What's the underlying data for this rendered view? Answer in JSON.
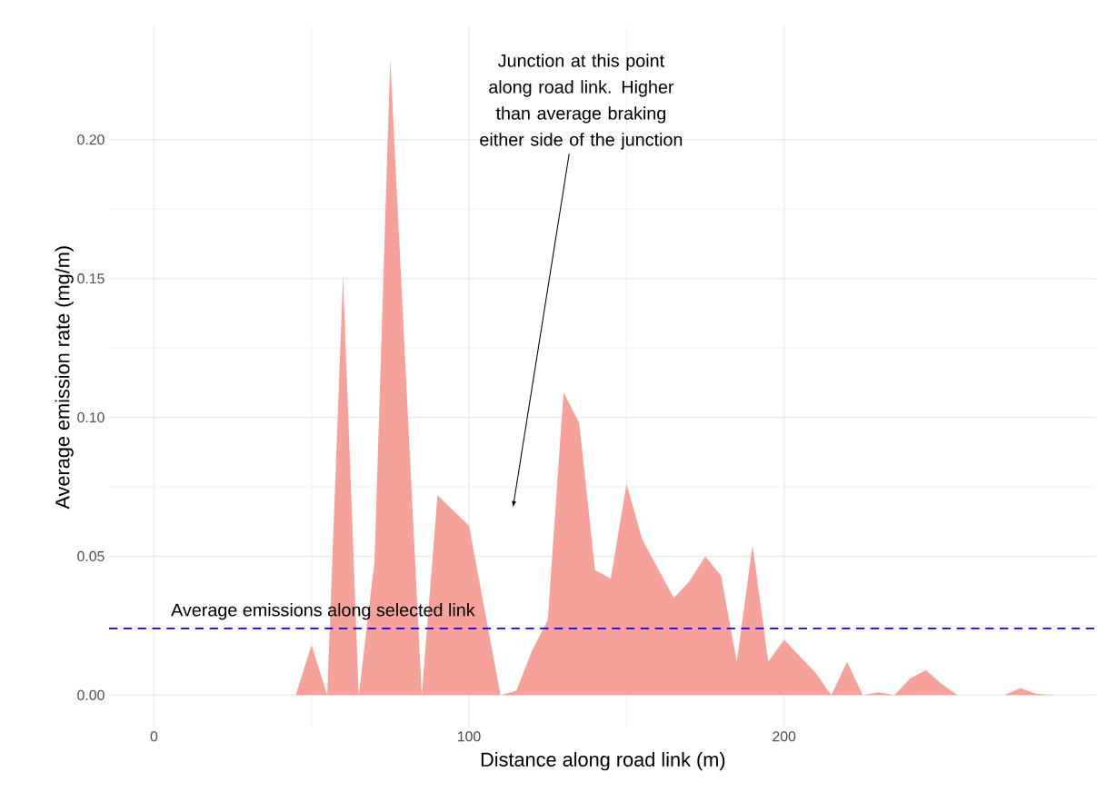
{
  "chart_data": {
    "type": "area",
    "xlabel": "Distance along road link (m)",
    "ylabel": "Average emission rate (mg/m)",
    "xlim": [
      -14.25,
      299.25
    ],
    "ylim": [
      -0.0115,
      0.2405
    ],
    "xticks": [
      0,
      100,
      200
    ],
    "yticks": [
      {
        "value": 0,
        "label": "0.00"
      },
      {
        "value": 0.05,
        "label": "0.05"
      },
      {
        "value": 0.1,
        "label": "0.10"
      },
      {
        "value": 0.15,
        "label": "0.15"
      },
      {
        "value": 0.2,
        "label": "0.20"
      }
    ],
    "grid": true,
    "series": [
      {
        "color": "#f7a19b",
        "x": [
          0,
          45,
          50,
          55,
          60,
          65,
          70,
          75,
          85,
          90,
          100,
          110,
          115,
          120,
          125,
          130,
          135,
          140,
          145,
          150,
          155,
          165,
          170,
          175,
          180,
          185,
          190,
          195,
          200,
          210,
          215,
          220,
          225,
          230,
          235,
          240,
          245,
          250,
          255,
          270,
          275,
          280,
          285
        ],
        "values": [
          0,
          0,
          0.018,
          0,
          0.151,
          0,
          0.048,
          0.229,
          0,
          0.072,
          0.061,
          0,
          0.0015,
          0.016,
          0.027,
          0.109,
          0.098,
          0.045,
          0.042,
          0.076,
          0.056,
          0.035,
          0.041,
          0.05,
          0.043,
          0.012,
          0.054,
          0.012,
          0.02,
          0.008,
          0,
          0.012,
          0,
          0.001,
          0,
          0.006,
          0.009,
          0.004,
          0,
          0,
          0.0025,
          0.0005,
          0
        ]
      }
    ],
    "ref_lines": [
      {
        "axis": "y",
        "value": 0.024,
        "label": "Average emissions along selected link",
        "color": "#0000ff",
        "line_style": "dashed"
      }
    ],
    "annotations": [
      "Junction at this point along road link. Higher than average braking either side of the junction"
    ]
  }
}
